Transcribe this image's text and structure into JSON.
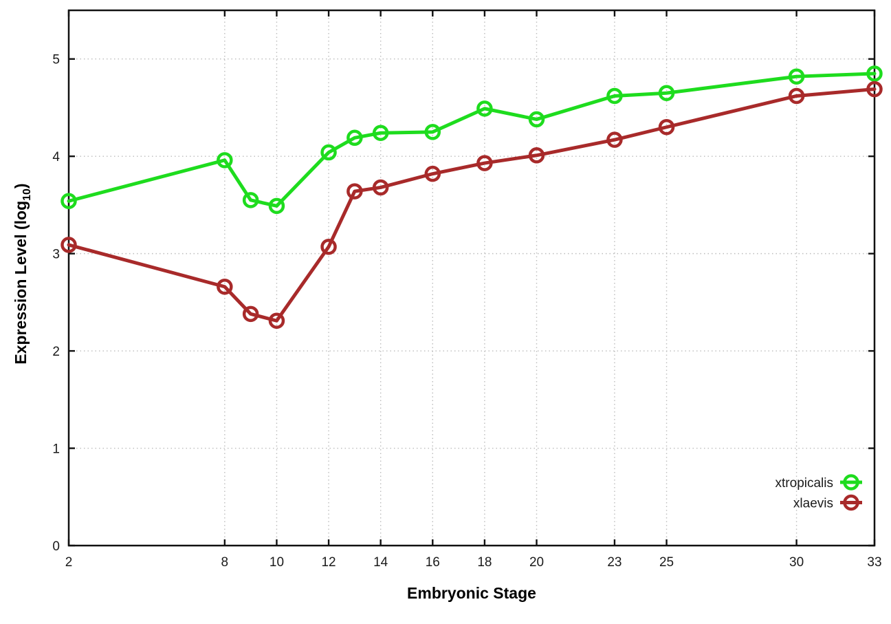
{
  "chart_data": {
    "type": "line",
    "title": "",
    "xlabel": "Embryonic Stage",
    "ylabel": "Expression Level (log10)",
    "ylabel_parts": {
      "prefix": "Expression Level (log",
      "sub": "10",
      "suffix": ")"
    },
    "x": [
      2,
      8,
      9,
      10,
      12,
      13,
      14,
      16,
      18,
      20,
      23,
      25,
      30,
      33
    ],
    "x_ticks": [
      2,
      8,
      10,
      12,
      14,
      16,
      18,
      20,
      23,
      25,
      30,
      33
    ],
    "x_tick_labels": [
      "2",
      "8",
      "10",
      "12",
      "14",
      "16",
      "18",
      "20",
      "23",
      "25",
      "30",
      "33"
    ],
    "y_ticks": [
      0,
      1,
      2,
      3,
      4,
      5
    ],
    "y_tick_labels": [
      "0",
      "1",
      "2",
      "3",
      "4",
      "5"
    ],
    "xlim": [
      2,
      33
    ],
    "ylim": [
      0,
      5.5
    ],
    "grid": true,
    "grid_style": "dotted",
    "legend_position": "inside-bottom-right",
    "marker": "open-circle",
    "series": [
      {
        "name": "xtropicalis",
        "color": "#1edc1e",
        "values": [
          3.54,
          3.96,
          3.55,
          3.49,
          4.04,
          4.19,
          4.24,
          4.25,
          4.49,
          4.38,
          4.62,
          4.65,
          4.82,
          4.85
        ]
      },
      {
        "name": "xlaevis",
        "color": "#a82a2a",
        "values": [
          3.09,
          2.66,
          2.38,
          2.31,
          3.07,
          3.64,
          3.68,
          3.82,
          3.93,
          4.01,
          4.17,
          4.3,
          4.62,
          4.69
        ]
      }
    ],
    "colors": {
      "border": "#111111",
      "grid": "#bcbcbc",
      "tick_text": "#1a1a1a"
    }
  }
}
